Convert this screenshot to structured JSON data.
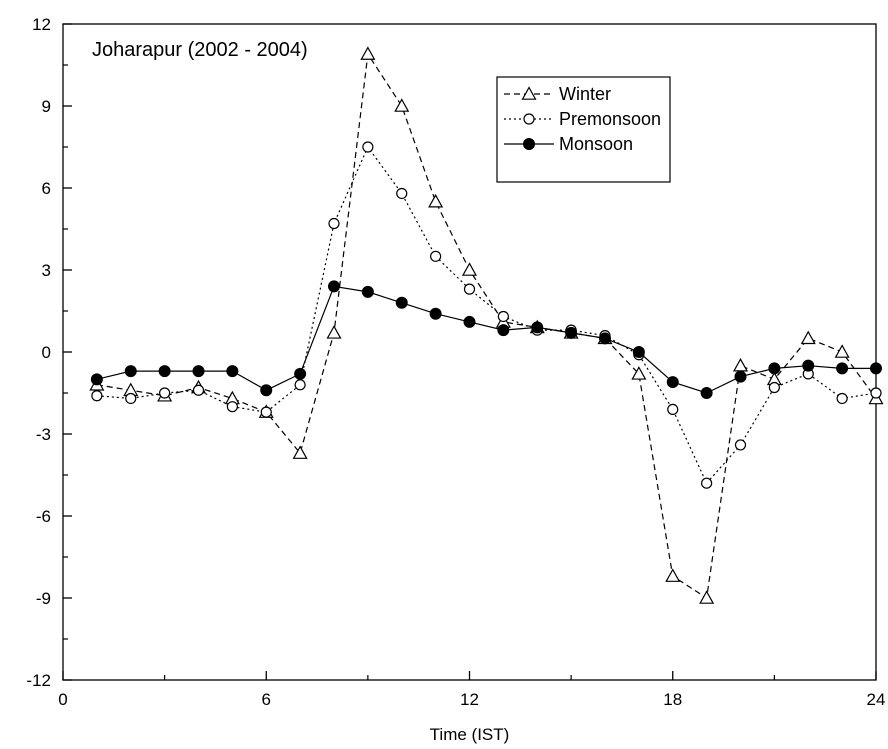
{
  "chart_data": {
    "type": "line",
    "title": "Joharapur (2002 - 2004)",
    "xlabel": "Time (IST)",
    "ylabel": "",
    "xlim": [
      0,
      24
    ],
    "ylim": [
      -12,
      12
    ],
    "xticks": [
      0,
      6,
      12,
      18,
      24
    ],
    "yticks": [
      -12,
      -9,
      -6,
      -3,
      0,
      3,
      6,
      9,
      12
    ],
    "grid": false,
    "legend_position": "top-right",
    "x": [
      1,
      2,
      3,
      4,
      5,
      6,
      7,
      8,
      9,
      10,
      11,
      12,
      13,
      14,
      15,
      16,
      17,
      18,
      19,
      20,
      21,
      22,
      23,
      24
    ],
    "series": [
      {
        "name": "Winter",
        "marker": "open-triangle",
        "line_style": "dashed",
        "values": [
          -1.2,
          -1.4,
          -1.6,
          -1.3,
          -1.7,
          -2.2,
          -3.7,
          0.7,
          10.9,
          9.0,
          5.5,
          3.0,
          1.1,
          0.9,
          0.7,
          0.5,
          -0.8,
          -8.2,
          -9.0,
          -0.5,
          -1.0,
          0.5,
          0.0,
          -1.7
        ]
      },
      {
        "name": "Premonsoon",
        "marker": "open-circle",
        "line_style": "dotted",
        "values": [
          -1.6,
          -1.7,
          -1.5,
          -1.4,
          -2.0,
          -2.2,
          -1.2,
          4.7,
          7.5,
          5.8,
          3.5,
          2.3,
          1.3,
          0.8,
          0.8,
          0.6,
          -0.1,
          -2.1,
          -4.8,
          -3.4,
          -1.3,
          -0.8,
          -1.7,
          -1.5
        ]
      },
      {
        "name": "Monsoon",
        "marker": "filled-circle",
        "line_style": "solid",
        "values": [
          -1.0,
          -0.7,
          -0.7,
          -0.7,
          -0.7,
          -1.4,
          -0.8,
          2.4,
          2.2,
          1.8,
          1.4,
          1.1,
          0.8,
          0.9,
          0.7,
          0.5,
          0.0,
          -1.1,
          -1.5,
          -0.9,
          -0.6,
          -0.5,
          -0.6,
          -0.6
        ]
      }
    ]
  }
}
